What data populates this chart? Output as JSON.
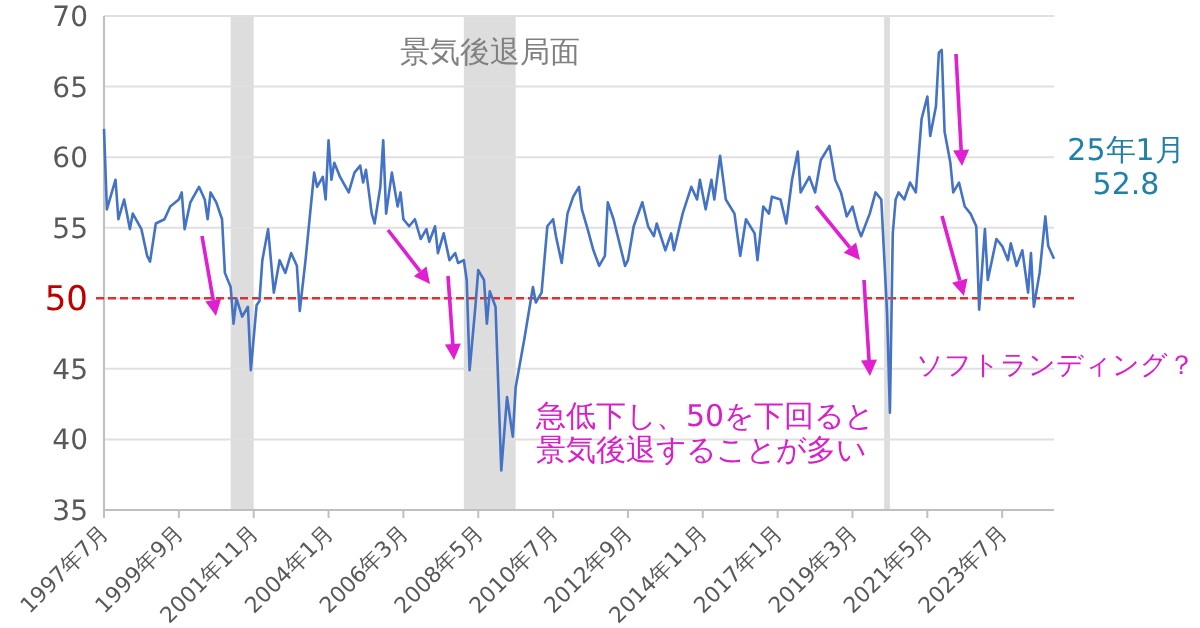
{
  "chart_data": {
    "type": "line",
    "x": [
      "1997-07",
      "1997-08",
      "1997-11",
      "1997-12",
      "1998-02",
      "1998-04",
      "1998-05",
      "1998-08",
      "1998-10",
      "1998-11",
      "1999-01",
      "1999-04",
      "1999-06",
      "1999-09",
      "1999-10",
      "1999-11",
      "2000-01",
      "2000-04",
      "2000-06",
      "2000-07",
      "2000-08",
      "2000-10",
      "2000-12",
      "2001-01",
      "2001-03",
      "2001-04",
      "2001-05",
      "2001-07",
      "2001-09",
      "2001-10",
      "2001-12",
      "2002-01",
      "2002-02",
      "2002-04",
      "2002-06",
      "2002-08",
      "2002-10",
      "2002-12",
      "2003-02",
      "2003-03",
      "2003-05",
      "2003-08",
      "2003-09",
      "2003-11",
      "2003-12",
      "2004-01",
      "2004-02",
      "2004-03",
      "2004-05",
      "2004-08",
      "2004-10",
      "2004-12",
      "2005-01",
      "2005-02",
      "2005-04",
      "2005-05",
      "2005-07",
      "2005-08",
      "2005-09",
      "2005-11",
      "2006-01",
      "2006-02",
      "2006-03",
      "2006-05",
      "2006-07",
      "2006-09",
      "2006-11",
      "2006-12",
      "2007-02",
      "2007-03",
      "2007-05",
      "2007-07",
      "2007-09",
      "2007-10",
      "2007-12",
      "2008-01",
      "2008-02",
      "2008-04",
      "2008-05",
      "2008-07",
      "2008-08",
      "2008-09",
      "2008-11",
      "2009-01",
      "2009-03",
      "2009-05",
      "2009-06",
      "2009-09",
      "2009-12",
      "2010-01",
      "2010-03",
      "2010-05",
      "2010-07",
      "2010-08",
      "2010-10",
      "2010-12",
      "2011-02",
      "2011-04",
      "2011-05",
      "2011-07",
      "2011-09",
      "2011-11",
      "2012-01",
      "2012-02",
      "2012-04",
      "2012-08",
      "2012-09",
      "2012-11",
      "2013-02",
      "2013-04",
      "2013-06",
      "2013-07",
      "2013-10",
      "2013-12",
      "2014-01",
      "2014-04",
      "2014-07",
      "2014-09",
      "2014-10",
      "2014-12",
      "2015-02",
      "2015-03",
      "2015-05",
      "2015-07",
      "2015-10",
      "2015-12",
      "2016-02",
      "2016-05",
      "2016-06",
      "2016-08",
      "2016-10",
      "2016-11",
      "2017-02",
      "2017-04",
      "2017-06",
      "2017-08",
      "2017-09",
      "2017-12",
      "2018-02",
      "2018-04",
      "2018-07",
      "2018-09",
      "2018-11",
      "2019-01",
      "2019-03",
      "2019-05",
      "2019-06",
      "2019-09",
      "2019-11",
      "2020-01",
      "2020-03",
      "2020-04",
      "2020-05",
      "2020-06",
      "2020-07",
      "2020-09",
      "2020-11",
      "2021-01",
      "2021-03",
      "2021-05",
      "2021-06",
      "2021-08",
      "2021-09",
      "2021-10",
      "2021-11",
      "2022-01",
      "2022-02",
      "2022-04",
      "2022-06",
      "2022-08",
      "2022-10",
      "2022-11",
      "2023-01",
      "2023-02",
      "2023-05",
      "2023-07",
      "2023-09",
      "2023-10",
      "2023-12",
      "2024-02",
      "2024-04",
      "2024-05",
      "2024-06",
      "2024-08",
      "2024-10",
      "2024-11",
      "2025-01"
    ],
    "series": [
      {
        "color": "#4472c4",
        "values": [
          62.0,
          56.3,
          58.4,
          55.6,
          57.0,
          54.9,
          56.0,
          54.9,
          53.0,
          52.6,
          55.3,
          55.6,
          56.5,
          57.0,
          57.5,
          54.9,
          56.8,
          57.9,
          57.0,
          55.6,
          57.5,
          56.8,
          55.6,
          51.8,
          50.8,
          48.2,
          50.0,
          48.7,
          49.4,
          44.9,
          49.5,
          49.8,
          52.7,
          54.9,
          50.4,
          52.7,
          51.8,
          53.2,
          52.3,
          49.1,
          52.7,
          58.9,
          57.9,
          58.6,
          57.0,
          61.2,
          58.4,
          59.6,
          58.6,
          57.5,
          58.9,
          59.4,
          58.2,
          59.1,
          56.0,
          55.3,
          57.9,
          61.2,
          56.0,
          58.9,
          56.5,
          57.5,
          55.6,
          55.1,
          55.6,
          54.2,
          54.9,
          54.0,
          55.1,
          53.2,
          54.6,
          52.7,
          53.2,
          52.5,
          52.7,
          51.3,
          44.9,
          49.4,
          52.0,
          51.3,
          48.2,
          50.5,
          49.4,
          37.8,
          43.0,
          40.2,
          43.7,
          47.1,
          50.8,
          49.7,
          50.4,
          55.1,
          55.6,
          54.4,
          52.5,
          56.0,
          57.2,
          57.9,
          56.3,
          54.9,
          53.4,
          52.3,
          53.0,
          56.8,
          55.6,
          52.3,
          52.7,
          55.1,
          56.8,
          55.1,
          54.4,
          55.3,
          53.4,
          54.6,
          53.4,
          56.0,
          57.9,
          57.0,
          58.4,
          56.3,
          58.4,
          57.0,
          60.1,
          57.0,
          56.0,
          53.0,
          55.6,
          54.6,
          52.7,
          56.5,
          56.0,
          57.2,
          57.0,
          55.3,
          58.4,
          60.4,
          57.5,
          58.6,
          57.5,
          59.8,
          60.8,
          58.4,
          57.5,
          55.8,
          56.5,
          54.9,
          54.4,
          56.0,
          57.5,
          57.0,
          49.0,
          41.9,
          54.6,
          57.0,
          57.5,
          57.0,
          58.2,
          57.5,
          62.7,
          64.3,
          61.5,
          63.6,
          67.4,
          67.6,
          61.8,
          59.6,
          57.5,
          58.2,
          56.5,
          56.0,
          55.1,
          49.2,
          54.9,
          51.3,
          54.2,
          53.7,
          52.7,
          53.9,
          52.3,
          53.4,
          50.4,
          53.2,
          49.4,
          51.8,
          55.8,
          53.7,
          52.8
        ]
      }
    ],
    "xlim": [
      "1997-07",
      "2025-01"
    ],
    "xticks": [
      {
        "value": "1997-07",
        "label": "1997年7月"
      },
      {
        "value": "1999-09",
        "label": "1999年9月"
      },
      {
        "value": "2001-11",
        "label": "2001年11月"
      },
      {
        "value": "2004-01",
        "label": "2004年1月"
      },
      {
        "value": "2006-03",
        "label": "2006年3月"
      },
      {
        "value": "2008-05",
        "label": "2008年5月"
      },
      {
        "value": "2010-07",
        "label": "2010年7月"
      },
      {
        "value": "2012-09",
        "label": "2012年9月"
      },
      {
        "value": "2014-11",
        "label": "2014年11月"
      },
      {
        "value": "2017-01",
        "label": "2017年1月"
      },
      {
        "value": "2019-03",
        "label": "2019年3月"
      },
      {
        "value": "2021-05",
        "label": "2021年5月"
      },
      {
        "value": "2023-07",
        "label": "2023年7月"
      }
    ],
    "ylim": [
      35,
      70
    ],
    "yticks": [
      35,
      40,
      45,
      50,
      55,
      60,
      65,
      70
    ],
    "grid": "y",
    "ref_lines": [
      {
        "axis": "y",
        "value": 50,
        "color": "#e03030",
        "line_style": "dashed"
      }
    ],
    "bands": [
      {
        "axis": "x",
        "from": "2001-03",
        "to": "2001-11",
        "color": "#dddddd"
      },
      {
        "axis": "x",
        "from": "2007-12",
        "to": "2009-06",
        "label": "景気後退局面",
        "color": "#dddddd"
      },
      {
        "axis": "x",
        "from": "2020-02",
        "to": "2020-04",
        "color": "#dddddd"
      }
    ],
    "annotations": [
      "急低下し、50を下回ると",
      "景気後退することが多い",
      "ソフトランディング？",
      "25年1月",
      "52.8"
    ]
  }
}
